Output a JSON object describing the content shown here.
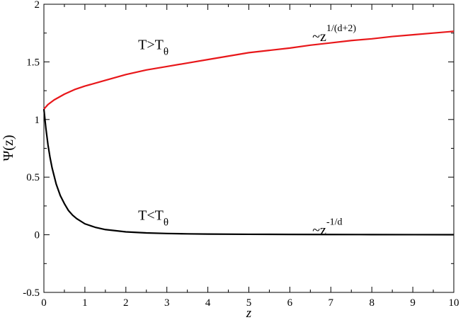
{
  "chart_data": {
    "type": "line",
    "xlabel": "z",
    "ylabel": "Ψ(z)",
    "xlim": [
      0,
      10
    ],
    "ylim": [
      -0.5,
      2
    ],
    "x_ticks": [
      0,
      1,
      2,
      3,
      4,
      5,
      6,
      7,
      8,
      9,
      10
    ],
    "x_tick_labels": [
      "0",
      "1",
      "2",
      "3",
      "4",
      "5",
      "6",
      "7",
      "8",
      "9",
      "10"
    ],
    "y_ticks": [
      -0.5,
      0,
      0.5,
      1,
      1.5,
      2
    ],
    "y_tick_labels": [
      "-0.5",
      "0",
      "0.5",
      "1",
      "1.5",
      "2"
    ],
    "grid": false,
    "series": [
      {
        "color": "#e8171a",
        "x": [
          0,
          0.1,
          0.25,
          0.5,
          0.75,
          1,
          1.5,
          2,
          2.5,
          3,
          3.5,
          4,
          4.5,
          5,
          5.5,
          6,
          6.5,
          7,
          7.5,
          8,
          8.5,
          9,
          9.5,
          10
        ],
        "y": [
          1.09,
          1.13,
          1.17,
          1.22,
          1.26,
          1.29,
          1.34,
          1.39,
          1.43,
          1.46,
          1.49,
          1.52,
          1.55,
          1.58,
          1.6,
          1.62,
          1.645,
          1.665,
          1.685,
          1.7,
          1.72,
          1.735,
          1.75,
          1.765
        ]
      },
      {
        "color": "#000000",
        "x": [
          0,
          0.05,
          0.1,
          0.15,
          0.2,
          0.3,
          0.4,
          0.5,
          0.6,
          0.7,
          0.8,
          1,
          1.25,
          1.5,
          2,
          2.5,
          3,
          3.5,
          4,
          5,
          6,
          7,
          8,
          9,
          10
        ],
        "y": [
          1.09,
          0.92,
          0.78,
          0.67,
          0.58,
          0.44,
          0.34,
          0.27,
          0.21,
          0.17,
          0.14,
          0.095,
          0.065,
          0.045,
          0.025,
          0.016,
          0.011,
          0.008,
          0.006,
          0.004,
          0.003,
          0.002,
          0.0015,
          0.001,
          0.0008
        ]
      }
    ],
    "annotations": [
      {
        "x": 2.3,
        "y": 1.61,
        "base": "T>T",
        "sub": "θ"
      },
      {
        "x": 2.3,
        "y": 0.13,
        "base": "T<T",
        "sub": "θ"
      },
      {
        "x": 6.55,
        "y": 1.68,
        "base": "~z",
        "sup": "1/(d+2)"
      },
      {
        "x": 6.55,
        "y": 0.0,
        "base": "~z",
        "sup": "-1/d"
      }
    ]
  }
}
